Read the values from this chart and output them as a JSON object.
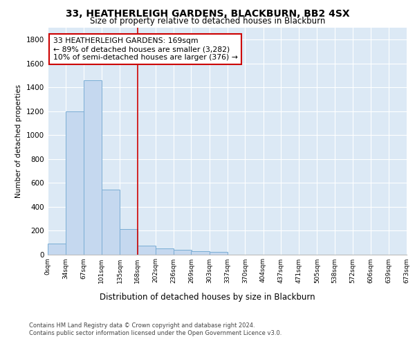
{
  "title1": "33, HEATHERLEIGH GARDENS, BLACKBURN, BB2 4SX",
  "title2": "Size of property relative to detached houses in Blackburn",
  "xlabel": "Distribution of detached houses by size in Blackburn",
  "ylabel": "Number of detached properties",
  "bar_left_edges": [
    0,
    34,
    67,
    101,
    135,
    168,
    202,
    236,
    269,
    303,
    337,
    370,
    404,
    437,
    471,
    505,
    538,
    572,
    606,
    639
  ],
  "bar_heights": [
    90,
    1200,
    1460,
    540,
    210,
    70,
    50,
    35,
    25,
    20,
    0,
    0,
    0,
    0,
    0,
    0,
    0,
    0,
    0,
    0
  ],
  "bin_width": 34,
  "bar_color": "#c5d8ef",
  "bar_edge_color": "#7aadd4",
  "property_value": 168,
  "vline_color": "#cc0000",
  "annotation_text": "33 HEATHERLEIGH GARDENS: 169sqm\n← 89% of detached houses are smaller (3,282)\n10% of semi-detached houses are larger (376) →",
  "annotation_box_color": "#ffffff",
  "annotation_box_edge_color": "#cc0000",
  "footer1": "Contains HM Land Registry data © Crown copyright and database right 2024.",
  "footer2": "Contains public sector information licensed under the Open Government Licence v3.0.",
  "x_tick_labels": [
    "0sqm",
    "34sqm",
    "67sqm",
    "101sqm",
    "135sqm",
    "168sqm",
    "202sqm",
    "236sqm",
    "269sqm",
    "303sqm",
    "337sqm",
    "370sqm",
    "404sqm",
    "437sqm",
    "471sqm",
    "505sqm",
    "538sqm",
    "572sqm",
    "606sqm",
    "639sqm",
    "673sqm"
  ],
  "yticks": [
    0,
    200,
    400,
    600,
    800,
    1000,
    1200,
    1400,
    1600,
    1800
  ],
  "ylim": [
    0,
    1900
  ],
  "bg_color": "#dce9f5",
  "plot_bg_color": "#dce9f5"
}
